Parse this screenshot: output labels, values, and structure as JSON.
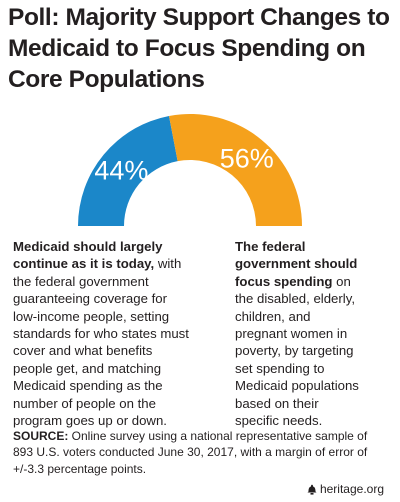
{
  "title_lines": [
    "Poll: Majority Support Changes to",
    "Medicaid to Focus Spending on",
    "Core Populations"
  ],
  "colors": {
    "left": "#1b87c9",
    "right": "#f5a11c",
    "text": "#231f20"
  },
  "chart_data": {
    "type": "pie",
    "subtype": "semicircle-donut",
    "categories": [
      "Medicaid should largely continue as it is today",
      "The federal government should focus spending"
    ],
    "values": [
      44,
      56
    ],
    "labels": [
      "44%",
      "56%"
    ],
    "colors": [
      "#1b87c9",
      "#f5a11c"
    ]
  },
  "left_column": {
    "bold_lines": [
      "Medicaid should largely",
      "continue as it is today,"
    ],
    "bold_tail": " with",
    "lines": [
      "the federal government",
      "guaranteeing coverage for",
      "low-income people, setting",
      "standards for who states must",
      "cover and what benefits",
      "people get, and matching",
      "Medicaid spending as the",
      "number of people on the",
      "program goes up or down."
    ]
  },
  "right_column": {
    "bold_lines": [
      "The federal",
      "government should"
    ],
    "bold_partial": "focus spending",
    "bold_partial_tail": " on",
    "lines": [
      "the disabled, elderly,",
      "children, and",
      "pregnant women in",
      "poverty, by targeting",
      "set spending to",
      "Medicaid populations",
      "based on their",
      "specific needs."
    ]
  },
  "source": {
    "label": "SOURCE:",
    "first_line": " Online survey using a national representative sample of",
    "lines": [
      "893 U.S. voters conducted June 30, 2017, with a margin of error of",
      "+/-3.3 percentage points."
    ]
  },
  "footer": {
    "text": "heritage.org"
  }
}
